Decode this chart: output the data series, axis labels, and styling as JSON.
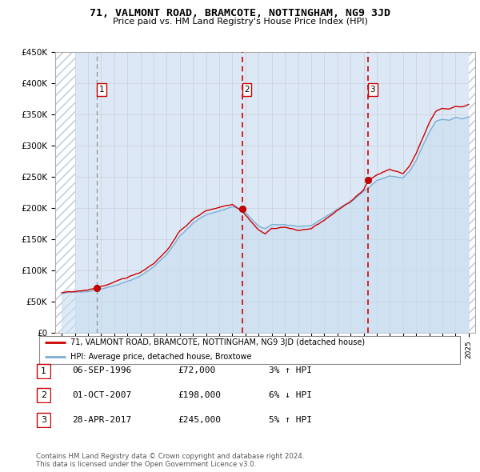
{
  "title": "71, VALMONT ROAD, BRAMCOTE, NOTTINGHAM, NG9 3JD",
  "subtitle": "Price paid vs. HM Land Registry's House Price Index (HPI)",
  "ylabel_ticks": [
    "£0",
    "£50K",
    "£100K",
    "£150K",
    "£200K",
    "£250K",
    "£300K",
    "£350K",
    "£400K",
    "£450K"
  ],
  "ytick_values": [
    0,
    50000,
    100000,
    150000,
    200000,
    250000,
    300000,
    350000,
    400000,
    450000
  ],
  "ylim": [
    0,
    450000
  ],
  "xlim_start": 1993.5,
  "xlim_end": 2025.5,
  "sale_dates": [
    1996.68,
    2007.75,
    2017.33
  ],
  "sale_prices": [
    72000,
    198000,
    245000
  ],
  "sale_labels": [
    "1",
    "2",
    "3"
  ],
  "sale_vline_styles": [
    "dashed_gray",
    "dashed_red",
    "dashed_red"
  ],
  "hpi_color": "#7bafd4",
  "hpi_fill_color": "#c8ddf0",
  "price_line_color": "#cc0000",
  "sale_dot_color": "#cc0000",
  "grid_color": "#c8d0d8",
  "chart_bg_color": "#dce8f5",
  "hatch_color": "#b8c8d8",
  "legend_line1": "71, VALMONT ROAD, BRAMCOTE, NOTTINGHAM, NG9 3JD (detached house)",
  "legend_line2": "HPI: Average price, detached house, Broxtowe",
  "table_rows": [
    {
      "num": "1",
      "date": "06-SEP-1996",
      "price": "£72,000",
      "hpi": "3% ↑ HPI"
    },
    {
      "num": "2",
      "date": "01-OCT-2007",
      "price": "£198,000",
      "hpi": "6% ↓ HPI"
    },
    {
      "num": "3",
      "date": "28-APR-2017",
      "price": "£245,000",
      "hpi": "5% ↑ HPI"
    }
  ],
  "footer": "Contains HM Land Registry data © Crown copyright and database right 2024.\nThis data is licensed under the Open Government Licence v3.0."
}
